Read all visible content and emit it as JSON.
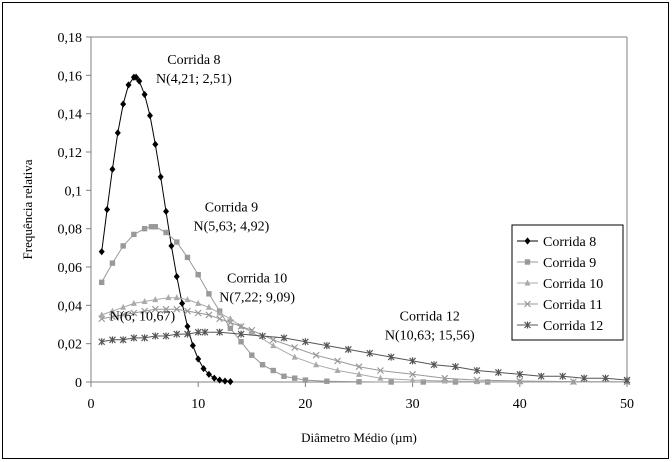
{
  "chart_data": {
    "type": "line",
    "xlabel": "Diâmetro Médio (µm)",
    "ylabel": "Frequência relativa",
    "xlim": [
      0,
      50
    ],
    "ylim": [
      0,
      0.18
    ],
    "x_ticks": [
      "0",
      "10",
      "20",
      "30",
      "40",
      "50"
    ],
    "y_ticks": [
      "0",
      "0,02",
      "0,04",
      "0,06",
      "0,08",
      "0,1",
      "0,12",
      "0,14",
      "0,16",
      "0,18"
    ],
    "grid": false,
    "legend_position": "right",
    "series": [
      {
        "name": "Corrida 8",
        "marker": "diamond",
        "color": "#000000",
        "x": [
          1,
          1.5,
          2,
          2.5,
          3,
          3.5,
          4,
          4.21,
          4.5,
          5,
          5.5,
          6,
          6.5,
          7,
          7.5,
          8,
          8.5,
          9,
          9.5,
          10,
          10.5,
          11,
          11.5,
          12,
          12.5,
          13
        ],
        "y": [
          0.068,
          0.09,
          0.111,
          0.13,
          0.145,
          0.155,
          0.159,
          0.159,
          0.157,
          0.15,
          0.139,
          0.124,
          0.107,
          0.089,
          0.071,
          0.055,
          0.041,
          0.029,
          0.019,
          0.012,
          0.007,
          0.004,
          0.002,
          0.001,
          0.0005,
          0.0002
        ]
      },
      {
        "name": "Corrida 9",
        "marker": "square",
        "color": "#999999",
        "x": [
          1,
          2,
          3,
          4,
          5,
          5.63,
          6,
          7,
          8,
          9,
          10,
          11,
          12,
          13,
          14,
          15,
          16,
          17,
          18,
          19,
          20,
          22,
          25,
          28,
          31,
          34,
          37
        ],
        "y": [
          0.052,
          0.062,
          0.071,
          0.077,
          0.08,
          0.081,
          0.081,
          0.078,
          0.073,
          0.065,
          0.056,
          0.046,
          0.037,
          0.028,
          0.021,
          0.014,
          0.009,
          0.006,
          0.003,
          0.002,
          0.001,
          0.0004,
          0.0001,
          0,
          0,
          0,
          0
        ]
      },
      {
        "name": "Corrida 10",
        "marker": "triangle",
        "color": "#aaaaaa",
        "x": [
          1,
          2,
          3,
          4,
          5,
          6,
          7.22,
          8,
          9,
          10,
          11,
          12,
          13,
          14,
          15,
          17,
          19,
          21,
          23,
          25,
          27,
          30,
          33,
          36,
          40,
          45,
          50
        ],
        "y": [
          0.035,
          0.037,
          0.039,
          0.041,
          0.042,
          0.043,
          0.044,
          0.044,
          0.043,
          0.041,
          0.039,
          0.036,
          0.033,
          0.029,
          0.026,
          0.019,
          0.013,
          0.009,
          0.006,
          0.004,
          0.002,
          0.001,
          0.0005,
          0.0002,
          0.0001,
          0,
          0
        ]
      },
      {
        "name": "Corrida 11",
        "marker": "x",
        "color": "#999999",
        "x": [
          1,
          2,
          3,
          4,
          5,
          6,
          7,
          8,
          9,
          10,
          11,
          12,
          13,
          14,
          15,
          17,
          19,
          21,
          23,
          25,
          27,
          30,
          33,
          36,
          40,
          45,
          50
        ],
        "y": [
          0.033,
          0.034,
          0.035,
          0.036,
          0.037,
          0.038,
          0.038,
          0.038,
          0.037,
          0.036,
          0.035,
          0.033,
          0.031,
          0.029,
          0.027,
          0.022,
          0.018,
          0.014,
          0.011,
          0.008,
          0.006,
          0.004,
          0.002,
          0.001,
          0.0005,
          0.0002,
          0.0001
        ]
      },
      {
        "name": "Corrida 12",
        "marker": "asterisk",
        "color": "#555555",
        "x": [
          1,
          2,
          3,
          4,
          5,
          6,
          7,
          8,
          9,
          10,
          10.63,
          12,
          14,
          16,
          18,
          20,
          22,
          24,
          26,
          28,
          30,
          32,
          34,
          36,
          38,
          40,
          42,
          44,
          46,
          48,
          50
        ],
        "y": [
          0.021,
          0.022,
          0.022,
          0.023,
          0.023,
          0.024,
          0.024,
          0.025,
          0.025,
          0.026,
          0.026,
          0.026,
          0.025,
          0.024,
          0.023,
          0.021,
          0.019,
          0.017,
          0.015,
          0.013,
          0.011,
          0.009,
          0.008,
          0.006,
          0.005,
          0.004,
          0.003,
          0.003,
          0.002,
          0.002,
          0.001
        ]
      }
    ],
    "annotations": [
      {
        "lines": [
          "Corrida 8",
          "N(4,21; 2,51)"
        ],
        "x": 9.6,
        "y": 0.166
      },
      {
        "lines": [
          "Corrida 9",
          "N(5,63; 4,92)"
        ],
        "x": 13.1,
        "y": 0.089
      },
      {
        "lines": [
          "Corrida 10",
          "N(7,22; 9,09)"
        ],
        "x": 15.5,
        "y": 0.052
      },
      {
        "lines": [
          "N(6; 10,67)"
        ],
        "x": 4.8,
        "y": 0.032
      },
      {
        "lines": [
          "Corrida 12",
          "N(10,63; 15,56)"
        ],
        "x": 31.6,
        "y": 0.032
      }
    ]
  }
}
